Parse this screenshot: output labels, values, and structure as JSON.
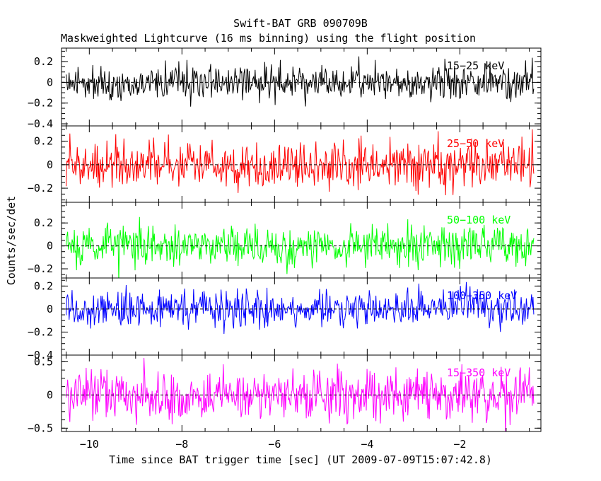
{
  "chart_data": {
    "type": "line",
    "title": "Swift-BAT GRB 090709B",
    "subtitle": "Maskweighted Lightcurve (16 ms binning) using the flight position",
    "xlabel": "Time since BAT trigger time [sec] (UT 2009-07-09T15:07:42.8)",
    "ylabel": "Counts/sec/det",
    "xlim": [
      -10.6,
      -0.25
    ],
    "data_x_range": [
      -10.5,
      -0.4
    ],
    "bin_size_sec": 0.016,
    "x_ticks": [
      -10,
      -8,
      -6,
      -4,
      -2
    ],
    "x_tick_labels": [
      "−10",
      "−8",
      "−6",
      "−4",
      "−2"
    ],
    "panels": [
      {
        "name": "15-25 keV",
        "label": "15−25 keV",
        "color": "#000000",
        "ylim": [
          -0.42,
          0.33
        ],
        "y_ticks": [
          0.2,
          0,
          -0.2,
          -0.4
        ],
        "y_tick_labels": [
          "0.2",
          "0",
          "−0.2",
          "−0.4"
        ],
        "noise_sigma": 0.085,
        "seed": 11
      },
      {
        "name": "25-50 keV",
        "label": "25−50 keV",
        "color": "#ff0000",
        "ylim": [
          -0.32,
          0.33
        ],
        "y_ticks": [
          0.2,
          0,
          -0.2
        ],
        "y_tick_labels": [
          "0.2",
          "0",
          "−0.2"
        ],
        "noise_sigma": 0.095,
        "seed": 23
      },
      {
        "name": "50-100 keV",
        "label": "50−100 keV",
        "color": "#00ff00",
        "ylim": [
          -0.28,
          0.38
        ],
        "y_ticks": [
          0.2,
          0,
          -0.2
        ],
        "y_tick_labels": [
          "0.2",
          "0",
          "−0.2"
        ],
        "noise_sigma": 0.09,
        "seed": 37
      },
      {
        "name": "100-350 keV",
        "label": "100−350 keV",
        "color": "#0000ff",
        "ylim": [
          -0.4,
          0.27
        ],
        "y_ticks": [
          0.2,
          0,
          -0.2,
          -0.4
        ],
        "y_tick_labels": [
          "0.2",
          "0",
          "−0.2",
          "−0.4"
        ],
        "noise_sigma": 0.08,
        "seed": 53
      },
      {
        "name": "15-350 keV",
        "label": "15−350 keV",
        "color": "#ff00ff",
        "ylim": [
          -0.55,
          0.6
        ],
        "y_ticks": [
          0.5,
          0,
          -0.5
        ],
        "y_tick_labels": [
          "0.5",
          "0",
          "−0.5"
        ],
        "noise_sigma": 0.19,
        "seed": 71
      }
    ]
  }
}
